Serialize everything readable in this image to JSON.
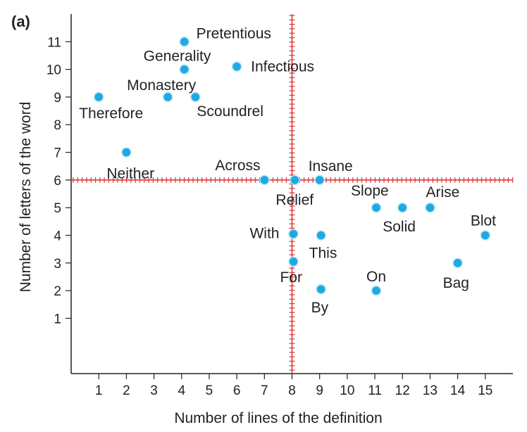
{
  "panel_label": "(a)",
  "chart_data": {
    "type": "scatter",
    "title": "",
    "xlabel": "Number of lines of the definition",
    "ylabel": "Number of letters of the word",
    "xlim": [
      0,
      16
    ],
    "ylim": [
      -1,
      12
    ],
    "xticks": [
      1,
      2,
      3,
      4,
      5,
      6,
      7,
      8,
      9,
      10,
      11,
      12,
      13,
      14,
      15
    ],
    "yticks": [
      1,
      2,
      3,
      4,
      5,
      6,
      7,
      8,
      9,
      10,
      11
    ],
    "grid": false,
    "reference_lines": {
      "x": 8,
      "y": 6,
      "color": "#d9383a"
    },
    "point_color": "#1fa9e1",
    "points": [
      {
        "label": "Therefore",
        "x": 1,
        "y": 9
      },
      {
        "label": "Neither",
        "x": 2,
        "y": 7
      },
      {
        "label": "Monastery",
        "x": 3.5,
        "y": 9
      },
      {
        "label": "Generality",
        "x": 4.1,
        "y": 10
      },
      {
        "label": "Pretentious",
        "x": 4.1,
        "y": 11
      },
      {
        "label": "Scoundrel",
        "x": 4.5,
        "y": 9
      },
      {
        "label": "Infectious",
        "x": 6,
        "y": 10.1
      },
      {
        "label": "Across",
        "x": 7,
        "y": 6
      },
      {
        "label": "Relief",
        "x": 8.1,
        "y": 6
      },
      {
        "label": "Insane",
        "x": 9,
        "y": 6
      },
      {
        "label": "With",
        "x": 8.05,
        "y": 4.05
      },
      {
        "label": "This",
        "x": 9.05,
        "y": 4
      },
      {
        "label": "For",
        "x": 8.05,
        "y": 3.05
      },
      {
        "label": "By",
        "x": 9.05,
        "y": 2.05
      },
      {
        "label": "On",
        "x": 11.05,
        "y": 2
      },
      {
        "label": "Slope",
        "x": 11.05,
        "y": 5
      },
      {
        "label": "Solid",
        "x": 12,
        "y": 5
      },
      {
        "label": "Arise",
        "x": 13,
        "y": 5
      },
      {
        "label": "Bag",
        "x": 14,
        "y": 3
      },
      {
        "label": "Blot",
        "x": 15,
        "y": 4
      }
    ]
  }
}
